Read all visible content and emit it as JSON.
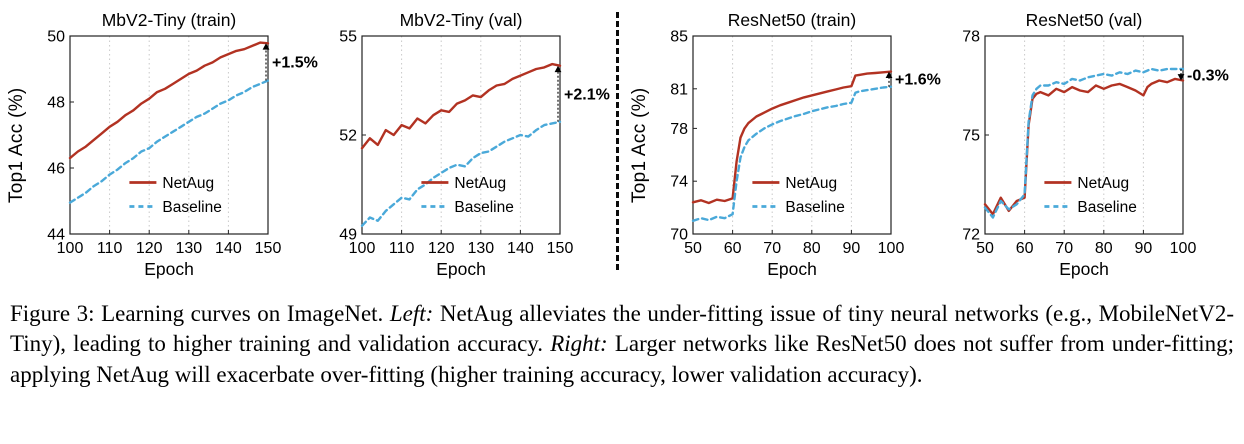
{
  "labels": {
    "y_axis": "Top1 Acc (%)"
  },
  "colors": {
    "netaug": "#b23222",
    "baseline": "#4aa9d9",
    "gain": "#2e9732",
    "loss": "#9d3557"
  },
  "caption": {
    "prefix": "Figure 3: Learning curves on ImageNet.",
    "left_label": "Left:",
    "left_text": "NetAug alleviates the under-fitting issue of tiny neural networks (e.g., MobileNetV2-Tiny), leading to higher training and validation accuracy.",
    "right_label": "Right:",
    "right_text": "Larger networks like ResNet50 does not suffer from under-fitting; applying NetAug will exacerbate over-fitting (higher training accuracy, lower validation accuracy)."
  },
  "chart_data": [
    {
      "id": "mbv2-tiny-train",
      "type": "line",
      "title": "MbV2-Tiny (train)",
      "xlabel": "Epoch",
      "ylabel": "Top1 Acc (%)",
      "xlim": [
        100,
        150
      ],
      "ylim": [
        44,
        50
      ],
      "xticks": [
        100,
        110,
        120,
        130,
        140,
        150
      ],
      "yticks": [
        44,
        46,
        48,
        50
      ],
      "grid": "vertical-dotted",
      "legend_position": "lower-center",
      "series": [
        {
          "name": "NetAug",
          "style": "solid",
          "color_key": "netaug",
          "x": [
            100,
            102,
            104,
            106,
            108,
            110,
            112,
            114,
            116,
            118,
            120,
            122,
            124,
            126,
            128,
            130,
            132,
            134,
            136,
            138,
            140,
            142,
            144,
            146,
            148,
            150
          ],
          "y": [
            46.3,
            46.5,
            46.65,
            46.85,
            47.05,
            47.25,
            47.4,
            47.6,
            47.75,
            47.95,
            48.1,
            48.3,
            48.4,
            48.55,
            48.7,
            48.85,
            48.95,
            49.1,
            49.2,
            49.35,
            49.45,
            49.55,
            49.6,
            49.7,
            49.8,
            49.78
          ]
        },
        {
          "name": "Baseline",
          "style": "dashed",
          "color_key": "baseline",
          "x": [
            100,
            102,
            104,
            106,
            108,
            110,
            112,
            114,
            116,
            118,
            120,
            122,
            124,
            126,
            128,
            130,
            132,
            134,
            136,
            138,
            140,
            142,
            144,
            146,
            148,
            150
          ],
          "y": [
            44.95,
            45.1,
            45.25,
            45.45,
            45.6,
            45.8,
            45.95,
            46.15,
            46.3,
            46.5,
            46.6,
            46.8,
            46.95,
            47.1,
            47.25,
            47.4,
            47.55,
            47.65,
            47.8,
            47.95,
            48.05,
            48.2,
            48.3,
            48.45,
            48.55,
            48.65
          ]
        }
      ],
      "annotation": {
        "label": "+1.5%",
        "color_key": "gain"
      }
    },
    {
      "id": "mbv2-tiny-val",
      "type": "line",
      "title": "MbV2-Tiny (val)",
      "xlabel": "Epoch",
      "xlim": [
        100,
        150
      ],
      "ylim": [
        49,
        55
      ],
      "xticks": [
        100,
        110,
        120,
        130,
        140,
        150
      ],
      "yticks": [
        49,
        52,
        55
      ],
      "grid": "vertical-dotted",
      "legend_position": "lower-center",
      "series": [
        {
          "name": "NetAug",
          "style": "solid",
          "color_key": "netaug",
          "x": [
            100,
            102,
            104,
            106,
            108,
            110,
            112,
            114,
            116,
            118,
            120,
            122,
            124,
            126,
            128,
            130,
            132,
            134,
            136,
            138,
            140,
            142,
            144,
            146,
            148,
            150
          ],
          "y": [
            51.6,
            51.9,
            51.7,
            52.15,
            52.0,
            52.3,
            52.2,
            52.5,
            52.35,
            52.6,
            52.75,
            52.7,
            52.95,
            53.05,
            53.2,
            53.15,
            53.35,
            53.5,
            53.55,
            53.7,
            53.8,
            53.9,
            54.0,
            54.05,
            54.15,
            54.1
          ]
        },
        {
          "name": "Baseline",
          "style": "dashed",
          "color_key": "baseline",
          "x": [
            100,
            102,
            104,
            106,
            108,
            110,
            112,
            114,
            116,
            118,
            120,
            122,
            124,
            126,
            128,
            130,
            132,
            134,
            136,
            138,
            140,
            142,
            144,
            146,
            148,
            150
          ],
          "y": [
            49.25,
            49.5,
            49.4,
            49.7,
            49.9,
            50.1,
            50.05,
            50.35,
            50.5,
            50.7,
            50.85,
            51.0,
            51.1,
            51.05,
            51.3,
            51.45,
            51.5,
            51.65,
            51.8,
            51.9,
            52.0,
            51.95,
            52.15,
            52.3,
            52.35,
            52.4
          ]
        }
      ],
      "annotation": {
        "label": "+2.1%",
        "color_key": "gain"
      }
    },
    {
      "id": "resnet50-train",
      "type": "line",
      "title": "ResNet50 (train)",
      "xlabel": "Epoch",
      "ylabel": "Top1 Acc (%)",
      "xlim": [
        50,
        100
      ],
      "ylim": [
        70,
        85
      ],
      "xticks": [
        50,
        60,
        70,
        80,
        90,
        100
      ],
      "yticks": [
        70,
        74,
        78,
        81,
        85
      ],
      "grid": "vertical-dotted",
      "legend_position": "lower-center",
      "series": [
        {
          "name": "NetAug",
          "style": "solid",
          "color_key": "netaug",
          "x": [
            50,
            52,
            54,
            56,
            58,
            60,
            61,
            62,
            63,
            64,
            66,
            68,
            70,
            72,
            74,
            76,
            78,
            80,
            82,
            84,
            86,
            88,
            90,
            91,
            92,
            94,
            96,
            98,
            100
          ],
          "y": [
            72.4,
            72.55,
            72.35,
            72.6,
            72.5,
            72.7,
            75.5,
            77.3,
            78.0,
            78.4,
            78.9,
            79.2,
            79.5,
            79.75,
            79.95,
            80.15,
            80.35,
            80.5,
            80.65,
            80.8,
            80.95,
            81.1,
            81.2,
            82.0,
            82.05,
            82.15,
            82.2,
            82.25,
            82.3
          ]
        },
        {
          "name": "Baseline",
          "style": "dashed",
          "color_key": "baseline",
          "x": [
            50,
            52,
            54,
            56,
            58,
            60,
            61,
            62,
            63,
            64,
            66,
            68,
            70,
            72,
            74,
            76,
            78,
            80,
            82,
            84,
            86,
            88,
            90,
            91,
            92,
            94,
            96,
            98,
            100
          ],
          "y": [
            71.0,
            71.2,
            71.05,
            71.3,
            71.2,
            71.5,
            74.0,
            75.8,
            76.6,
            77.1,
            77.6,
            78.0,
            78.3,
            78.55,
            78.75,
            78.95,
            79.1,
            79.3,
            79.45,
            79.6,
            79.7,
            79.85,
            79.95,
            80.7,
            80.8,
            80.9,
            81.0,
            81.1,
            81.15
          ]
        }
      ],
      "annotation": {
        "label": "+1.6%",
        "color_key": "gain"
      }
    },
    {
      "id": "resnet50-val",
      "type": "line",
      "title": "ResNet50 (val)",
      "xlabel": "Epoch",
      "xlim": [
        50,
        100
      ],
      "ylim": [
        72,
        78
      ],
      "xticks": [
        50,
        60,
        70,
        80,
        90,
        100
      ],
      "yticks": [
        72,
        75,
        78
      ],
      "grid": "vertical-dotted",
      "legend_position": "lower-center",
      "series": [
        {
          "name": "NetAug",
          "style": "solid",
          "color_key": "netaug",
          "x": [
            50,
            52,
            54,
            56,
            58,
            60,
            61,
            62,
            63,
            64,
            66,
            68,
            70,
            72,
            74,
            76,
            78,
            80,
            82,
            84,
            86,
            88,
            90,
            91,
            92,
            94,
            96,
            98,
            100
          ],
          "y": [
            72.9,
            72.6,
            73.1,
            72.7,
            73.0,
            73.1,
            75.3,
            76.1,
            76.25,
            76.3,
            76.2,
            76.4,
            76.3,
            76.45,
            76.35,
            76.3,
            76.5,
            76.4,
            76.5,
            76.55,
            76.45,
            76.35,
            76.2,
            76.45,
            76.55,
            76.65,
            76.6,
            76.7,
            76.65
          ]
        },
        {
          "name": "Baseline",
          "style": "dashed",
          "color_key": "baseline",
          "x": [
            50,
            52,
            54,
            56,
            58,
            60,
            61,
            62,
            63,
            64,
            66,
            68,
            70,
            72,
            74,
            76,
            78,
            80,
            82,
            84,
            86,
            88,
            90,
            91,
            92,
            94,
            96,
            98,
            100
          ],
          "y": [
            72.8,
            72.5,
            73.0,
            72.75,
            72.9,
            73.2,
            75.4,
            76.2,
            76.4,
            76.5,
            76.5,
            76.6,
            76.55,
            76.7,
            76.65,
            76.75,
            76.8,
            76.85,
            76.8,
            76.9,
            76.85,
            76.95,
            76.9,
            76.95,
            77.0,
            76.95,
            77.0,
            77.0,
            77.0
          ]
        }
      ],
      "annotation": {
        "label": "-0.3%",
        "color_key": "loss"
      }
    }
  ]
}
